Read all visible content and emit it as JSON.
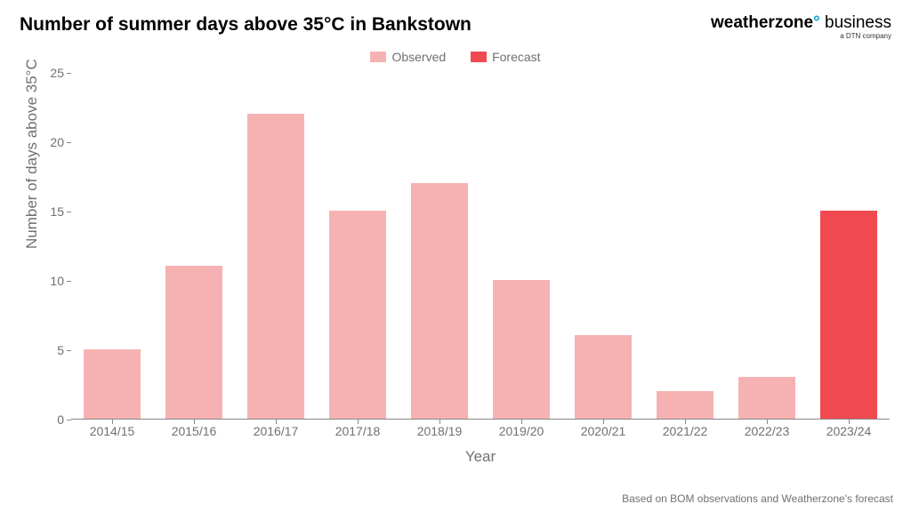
{
  "title": "Number of summer days above 35°C in Bankstown",
  "brand": {
    "main_bold": "weatherzone",
    "degree": "°",
    "business": " business",
    "sub": "a DTN company"
  },
  "legend": {
    "observed": {
      "label": "Observed",
      "color": "#f6b2b2"
    },
    "forecast": {
      "label": "Forecast",
      "color": "#f14950"
    }
  },
  "chart": {
    "type": "bar",
    "ylabel": "Number of days above 35°C",
    "xlabel": "Year",
    "ylim": [
      0,
      25
    ],
    "ytick_step": 5,
    "yticks": [
      0,
      5,
      10,
      15,
      20,
      25
    ],
    "bar_width_ratio": 0.7,
    "background_color": "#ffffff",
    "axis_color": "#888888",
    "label_color": "#707070",
    "title_fontsize": 21,
    "label_fontsize": 17,
    "tick_fontsize": 14,
    "categories": [
      "2014/15",
      "2015/16",
      "2016/17",
      "2017/18",
      "2018/19",
      "2019/20",
      "2020/21",
      "2021/22",
      "2022/23",
      "2023/24"
    ],
    "values": [
      5,
      11,
      22,
      15,
      17,
      10,
      6,
      2,
      3,
      15
    ],
    "series": [
      "observed",
      "observed",
      "observed",
      "observed",
      "observed",
      "observed",
      "observed",
      "observed",
      "observed",
      "forecast"
    ],
    "bar_colors": [
      "#f6b2b2",
      "#f6b2b2",
      "#f6b2b2",
      "#f6b2b2",
      "#f6b2b2",
      "#f6b2b2",
      "#f6b2b2",
      "#f6b2b2",
      "#f6b2b2",
      "#f14950"
    ]
  },
  "footnote": "Based on BOM observations and Weatherzone's forecast"
}
